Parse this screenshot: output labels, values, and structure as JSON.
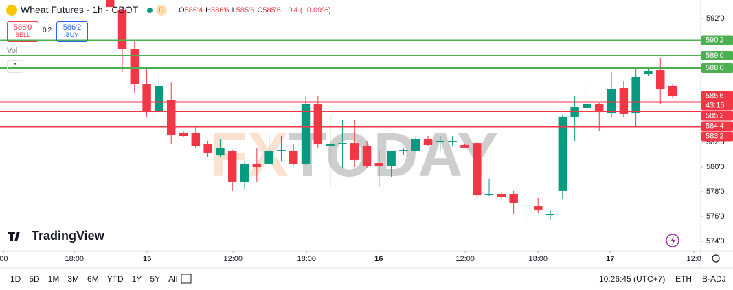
{
  "header": {
    "symbol": "Wheat Futures · 1h · CBOT",
    "session": "D",
    "ohlc": [
      {
        "key": "O",
        "value": "586'4"
      },
      {
        "key": "H",
        "value": "586'6"
      },
      {
        "key": "L",
        "value": "585'6"
      },
      {
        "key": "C",
        "value": "585'6"
      }
    ],
    "change": "−0'4 (−0.09%)",
    "sell": {
      "price": "586'0",
      "label": "SELL"
    },
    "spread": "0'2",
    "buy": {
      "price": "586'2",
      "label": "BUY"
    },
    "volume": "Vol"
  },
  "watermark": {
    "part1": "FX",
    "part2": "TODAY"
  },
  "logo": "TradingView",
  "toolbar": {
    "ranges": [
      "1D",
      "5D",
      "1M",
      "3M",
      "6M",
      "YTD",
      "1Y",
      "5Y",
      "All"
    ],
    "clock": "10:26:45 (UTC+7)",
    "session": "ETH",
    "adjust": "B-ADJ"
  },
  "chart_data": {
    "type": "candlestick",
    "up_color": "#089981",
    "down_color": "#f23645",
    "open": [
      593.5,
      592.67,
      589.5,
      586.72,
      584.5,
      585.44,
      582.78,
      582.78,
      581.83,
      580.94,
      581.28,
      578.78,
      580.28,
      580.28,
      581.28,
      581.28,
      580.28,
      585.06,
      581.72,
      581.89,
      581.94,
      581.72,
      580.33,
      580.06,
      581.28,
      581.28,
      582.28,
      582.06,
      582.06,
      581.78,
      581.94,
      577.72,
      577.78,
      577.78,
      576.89,
      576.83,
      576.11,
      578.06,
      584.06,
      584.78,
      585.06,
      584.33,
      586.39,
      584.33,
      587.5,
      587.83,
      586.56
    ],
    "high": [
      593.5,
      592.94,
      590.17,
      587.94,
      587.67,
      586.83,
      582.94,
      583.33,
      582.11,
      582.28,
      581.39,
      580.44,
      581.56,
      582.67,
      582.5,
      581.83,
      585.72,
      585.72,
      584.17,
      583.78,
      583.78,
      582.11,
      581.39,
      581.28,
      581.56,
      582.5,
      582.5,
      582.5,
      582.5,
      581.83,
      582.06,
      579.06,
      577.94,
      578.06,
      577.39,
      577.5,
      576.56,
      584.17,
      585.72,
      586.56,
      585.17,
      587.67,
      586.94,
      587.94,
      587.94,
      588.78,
      586.72
    ],
    "low": [
      592.94,
      587.67,
      586,
      584.06,
      584.33,
      581.83,
      582.39,
      581.56,
      580.83,
      580.83,
      578.06,
      578.22,
      578.78,
      580.17,
      580.44,
      580.17,
      580.17,
      581.56,
      578.39,
      579.89,
      580,
      579.89,
      578.39,
      579.17,
      581,
      581.17,
      581.72,
      581.28,
      581.72,
      581.5,
      577.5,
      577.67,
      577.39,
      576.17,
      575.39,
      576.28,
      575.72,
      577.39,
      582.11,
      584.61,
      582.94,
      584.06,
      584.06,
      583.33,
      587.39,
      585.06,
      585.61
    ],
    "close": [
      592.94,
      589.5,
      586.72,
      584.5,
      586.56,
      582.56,
      582.5,
      581.72,
      581.17,
      581.5,
      578.78,
      580.28,
      580,
      581.28,
      581.39,
      580.28,
      585.06,
      581.83,
      581.83,
      581.94,
      580.56,
      580.06,
      580.06,
      581.28,
      581.33,
      582.28,
      581.78,
      582.11,
      582.11,
      581.56,
      577.72,
      577.78,
      577.56,
      577.06,
      576.94,
      576.56,
      576.17,
      584.06,
      584.89,
      585.06,
      584.44,
      586.28,
      584.28,
      587.28,
      587.72,
      586.28,
      585.72
    ],
    "ylim": [
      573.25,
      593.5
    ],
    "yticks": [
      {
        "value": 592,
        "label": "592'0"
      },
      {
        "value": 582,
        "label": "582'0"
      },
      {
        "value": 580,
        "label": "580'0"
      },
      {
        "value": 578,
        "label": "578'0"
      },
      {
        "value": 576,
        "label": "576'0"
      },
      {
        "value": 574,
        "label": "574'0"
      }
    ],
    "xlim": [
      -9,
      48.3
    ],
    "xticks": [
      {
        "value": -8.7,
        "label": "00"
      },
      {
        "value": -2.92,
        "label": "18:00"
      },
      {
        "value": 3.03,
        "label": "15"
      },
      {
        "value": 10.06,
        "label": "12:00"
      },
      {
        "value": 16.07,
        "label": "18:00"
      },
      {
        "value": 21.97,
        "label": "16"
      },
      {
        "value": 29.04,
        "label": "12:00"
      },
      {
        "value": 35,
        "label": "18:00"
      },
      {
        "value": 40.9,
        "label": "17"
      },
      {
        "value": 47.75,
        "label": "12:0"
      }
    ],
    "levels": [
      {
        "value": 590.25,
        "label": "590'2",
        "color": "#4caf50"
      },
      {
        "value": 589,
        "label": "589'0",
        "color": "#4caf50"
      },
      {
        "value": 588,
        "label": "588'0",
        "color": "#4caf50"
      },
      {
        "value": 585.25,
        "label": "585'2",
        "color": "#f23645"
      },
      {
        "value": 584.5,
        "label": "584'4",
        "color": "#f23645"
      },
      {
        "value": 583.25,
        "label": "583'2",
        "color": "#f23645"
      }
    ],
    "last_price": {
      "value": 585.75,
      "label": "585'6",
      "countdown": "43:15",
      "color": "#f23645"
    },
    "grid": false
  }
}
